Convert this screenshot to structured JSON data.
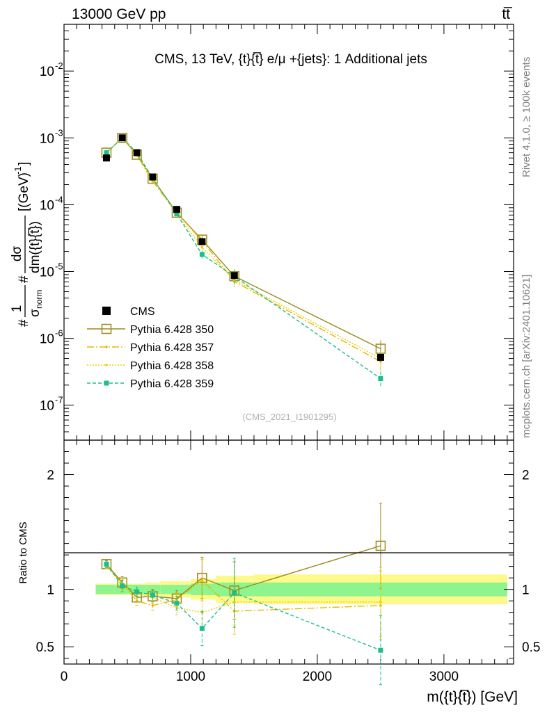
{
  "header": {
    "process": "13000 GeV pp",
    "top_right": "tt̅"
  },
  "side_labels": {
    "rivet": "Rivet 4.1.0, ≥ 100k events",
    "mcplots": "mcplots.cern.ch [arXiv:2401.10621]"
  },
  "chart_data": {
    "type": "line",
    "title": "CMS, 13 TeV, {t}{t̅} e/μ +{jets}: 1 Additional jets",
    "watermark": "(CMS_2021_I1901295)",
    "xlabel": "m({t}{t̅}) [GeV]",
    "ylabel": "#1/σnorm #dσ/dm({t}{t̅}) [(GeV)^-1]",
    "ylabel_parts": {
      "frac1_num": "1",
      "frac1_den": "σ",
      "frac1_den_sub": "norm",
      "frac2_num": "dσ",
      "frac2_den": "dm({t}{t̅})",
      "units": "[(GeV)",
      "units_exp": "-1",
      "units_close": "]",
      "hash": "#"
    },
    "ratio_ylabel": "Ratio to CMS",
    "xlim": [
      0,
      3550
    ],
    "ylim": [
      3e-08,
      0.05
    ],
    "ratio_ylim": [
      0.35,
      2.3
    ],
    "x_ticks": [
      0,
      1000,
      2000,
      3000
    ],
    "y_ticks": [
      {
        "value": 1e-07,
        "base": "10",
        "exp": "-7"
      },
      {
        "value": 1e-06,
        "base": "10",
        "exp": "-6"
      },
      {
        "value": 1e-05,
        "base": "10",
        "exp": "-5"
      },
      {
        "value": 0.0001,
        "base": "10",
        "exp": "-4"
      },
      {
        "value": 0.001,
        "base": "10",
        "exp": "-3"
      },
      {
        "value": 0.01,
        "base": "10",
        "exp": "-2"
      }
    ],
    "ratio_ticks": [
      0.5,
      1,
      2
    ],
    "x": [
      335,
      460,
      575,
      700,
      890,
      1090,
      1345,
      2500
    ],
    "bin_edges": [
      250,
      400,
      520,
      640,
      760,
      1000,
      1200,
      1500,
      3500
    ],
    "data": {
      "name": "CMS",
      "values": [
        0.0005,
        0.001,
        0.0006,
        0.00026,
        8.5e-05,
        2.8e-05,
        8.7e-06,
        5.2e-07
      ],
      "band_inner": [
        0.04,
        0.04,
        0.04,
        0.04,
        0.04,
        0.05,
        0.06,
        0.06
      ],
      "band_outer": [
        0.05,
        0.05,
        0.05,
        0.06,
        0.07,
        0.09,
        0.12,
        0.13
      ]
    },
    "series": [
      {
        "name": "Pythia 6.428 350",
        "color": "#9a8a1c",
        "dash": "",
        "marker": "open-square",
        "values": [
          0.0006,
          0.001,
          0.00056,
          0.000245,
          7.6e-05,
          3e-05,
          8.5e-06,
          7e-07
        ],
        "ratio": [
          1.22,
          1.06,
          0.93,
          0.94,
          0.92,
          1.1,
          0.99,
          1.38
        ],
        "ratio_err": [
          0.03,
          0.05,
          0.04,
          0.05,
          0.07,
          0.18,
          0.25,
          0.37
        ]
      },
      {
        "name": "Pythia 6.428 357",
        "color": "#e6b800",
        "dash": "10,3,2,3",
        "marker": "dot",
        "values": [
          0.0006,
          0.001,
          0.00055,
          0.000225,
          7.5e-05,
          2.9e-05,
          7.1e-06,
          4.5e-07
        ],
        "ratio": [
          1.21,
          1.05,
          0.9,
          0.86,
          0.91,
          1.08,
          0.81,
          0.86
        ],
        "ratio_err": [
          0.03,
          0.05,
          0.04,
          0.04,
          0.06,
          0.18,
          0.2,
          0.3
        ]
      },
      {
        "name": "Pythia 6.428 358",
        "color": "#e6d000",
        "dash": "2,2",
        "marker": "dot",
        "values": [
          0.0006,
          0.001,
          0.00058,
          0.00024,
          7.2e-05,
          2.3e-05,
          7.5e-06,
          5e-07
        ],
        "ratio": [
          1.21,
          1.04,
          0.96,
          0.93,
          0.84,
          0.8,
          0.89,
          0.89
        ],
        "ratio_err": [
          0.03,
          0.05,
          0.04,
          0.05,
          0.06,
          0.15,
          0.2,
          0.3
        ]
      },
      {
        "name": "Pythia 6.428 359",
        "color": "#1bbf8a",
        "dash": "5,3",
        "marker": "filled-square",
        "values": [
          0.0006,
          0.001,
          0.0006,
          0.00025,
          7.3e-05,
          1.8e-05,
          8.5e-06,
          2.5e-07
        ],
        "ratio": [
          1.22,
          1.03,
          0.98,
          0.95,
          0.88,
          0.66,
          0.97,
          0.47
        ],
        "ratio_err": [
          0.03,
          0.05,
          0.04,
          0.05,
          0.06,
          0.15,
          0.3,
          0.3
        ]
      }
    ]
  }
}
